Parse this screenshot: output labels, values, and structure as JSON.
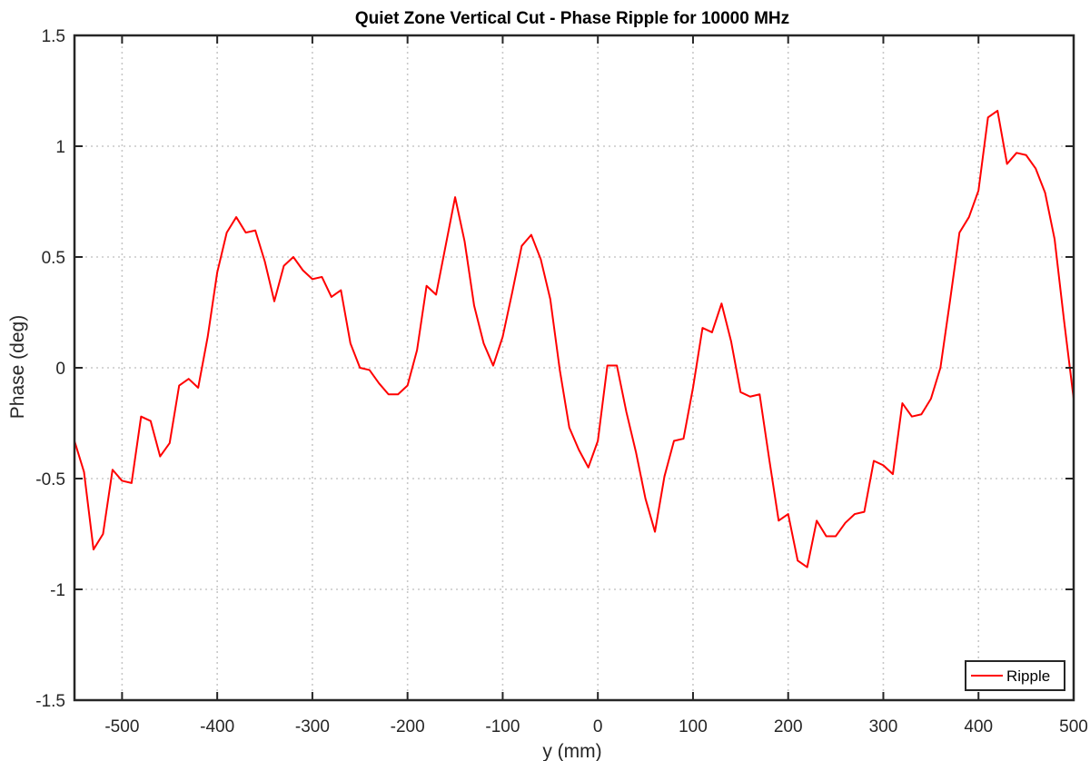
{
  "chart_data": {
    "type": "line",
    "title": "Quiet Zone Vertical Cut - Phase Ripple for 10000 MHz",
    "xlabel": "y (mm)",
    "ylabel": "Phase (deg)",
    "xlim": [
      -550,
      500
    ],
    "ylim": [
      -1.5,
      1.5
    ],
    "xticks": [
      -500,
      -400,
      -300,
      -200,
      -100,
      0,
      100,
      200,
      300,
      400,
      500
    ],
    "yticks": [
      -1.5,
      -1,
      -0.5,
      0,
      0.5,
      1,
      1.5
    ],
    "xtick_labels": [
      "-500",
      "-400",
      "-300",
      "-200",
      "-100",
      "0",
      "100",
      "200",
      "300",
      "400",
      "500"
    ],
    "ytick_labels": [
      "-1.5",
      "-1",
      "-0.5",
      "0",
      "0.5",
      "1",
      "1.5"
    ],
    "grid": true,
    "legend_position": "bottom-right",
    "series": [
      {
        "name": "Ripple",
        "color": "#ff0000",
        "x": [
          -550,
          -540,
          -530,
          -520,
          -510,
          -500,
          -490,
          -480,
          -470,
          -460,
          -450,
          -440,
          -430,
          -420,
          -410,
          -400,
          -390,
          -380,
          -370,
          -360,
          -350,
          -340,
          -330,
          -320,
          -310,
          -300,
          -290,
          -280,
          -270,
          -260,
          -250,
          -240,
          -230,
          -220,
          -210,
          -200,
          -190,
          -180,
          -170,
          -160,
          -150,
          -140,
          -130,
          -120,
          -110,
          -100,
          -90,
          -80,
          -70,
          -60,
          -50,
          -40,
          -30,
          -20,
          -10,
          0,
          10,
          20,
          30,
          40,
          50,
          60,
          70,
          80,
          90,
          100,
          110,
          120,
          130,
          140,
          150,
          160,
          170,
          180,
          190,
          200,
          210,
          220,
          230,
          240,
          250,
          260,
          270,
          280,
          290,
          300,
          310,
          320,
          330,
          340,
          350,
          360,
          370,
          380,
          390,
          400,
          410,
          420,
          430,
          440,
          450,
          460,
          470,
          480,
          490,
          500
        ],
        "y": [
          -0.33,
          -0.47,
          -0.82,
          -0.75,
          -0.46,
          -0.51,
          -0.52,
          -0.22,
          -0.24,
          -0.4,
          -0.34,
          -0.08,
          -0.05,
          -0.09,
          0.14,
          0.43,
          0.61,
          0.68,
          0.61,
          0.62,
          0.48,
          0.3,
          0.46,
          0.5,
          0.44,
          0.4,
          0.41,
          0.32,
          0.35,
          0.11,
          0.0,
          -0.01,
          -0.07,
          -0.12,
          -0.12,
          -0.08,
          0.08,
          0.37,
          0.33,
          0.55,
          0.77,
          0.57,
          0.28,
          0.11,
          0.01,
          0.14,
          0.34,
          0.55,
          0.6,
          0.49,
          0.31,
          -0.01,
          -0.27,
          -0.37,
          -0.45,
          -0.33,
          0.01,
          0.01,
          -0.2,
          -0.38,
          -0.59,
          -0.74,
          -0.49,
          -0.33,
          -0.32,
          -0.09,
          0.18,
          0.16,
          0.29,
          0.12,
          -0.11,
          -0.13,
          -0.12,
          -0.41,
          -0.69,
          -0.66,
          -0.87,
          -0.9,
          -0.69,
          -0.76,
          -0.76,
          -0.7,
          -0.66,
          -0.65,
          -0.42,
          -0.44,
          -0.48,
          -0.16,
          -0.22,
          -0.21,
          -0.14,
          0.0,
          0.3,
          0.61,
          0.68,
          0.8,
          1.13,
          1.16,
          0.92,
          0.97,
          0.96,
          0.9,
          0.79,
          0.58,
          0.21,
          -0.14
        ]
      }
    ]
  }
}
